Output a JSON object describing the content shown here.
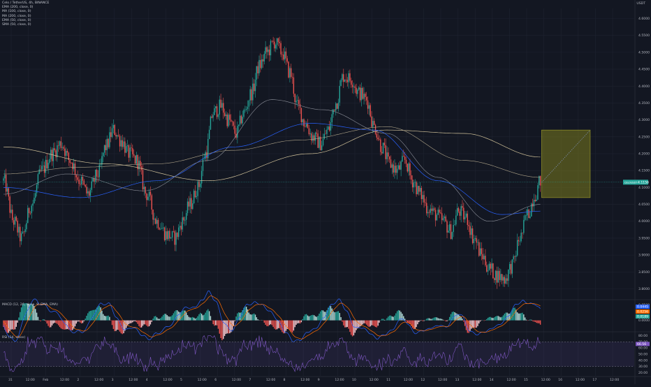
{
  "legend": {
    "title": "Celo / TetherUS, 4h, BINANCE",
    "indicators": [
      "EMA (200, close, 0)",
      "MA (100, close, 0)",
      "MA (200, close, 0)",
      "EMA (50, close, 0)",
      "SMA (50, close, 0)"
    ]
  },
  "price_axis_unit": "USDT",
  "macd_legend": "MACD (12, 26, close, 9, EMA, EMA)",
  "rsi_legend": "RSI (14, close)",
  "colors": {
    "background": "#131722",
    "grid": "#1f2330",
    "up": "#26a69a",
    "down": "#ef5350",
    "ema200": "#d1c29a",
    "ma100": "#2962ff",
    "ma200": "#b0a58a",
    "ema50": "#8c8f99",
    "macd_line": "#2962ff",
    "signal_line": "#ff6d00",
    "rsi_line": "#7e57c2",
    "rsi_band": "#7e57c2",
    "projection_box": "#7a7a1e",
    "price_label": "#26a69a"
  },
  "chart_data": [
    {
      "type": "candlestick",
      "name": "price",
      "x_ticks": [
        "31",
        "12:00",
        "Feb",
        "12:00",
        "2",
        "12:00",
        "3",
        "12:00",
        "4",
        "12:00",
        "5",
        "12:00",
        "6",
        "12:00",
        "7",
        "12:00",
        "8",
        "12:00",
        "9",
        "12:00",
        "10",
        "12:00",
        "11",
        "12:00",
        "12",
        "12:00",
        "13",
        "12:00",
        "14",
        "12:00",
        "15",
        "12:00",
        "16",
        "12:00",
        "17",
        "12:00"
      ],
      "y_ticks": [
        3.8,
        3.85,
        3.9,
        3.95,
        4.0,
        4.05,
        4.1,
        4.15,
        4.2,
        4.25,
        4.3,
        4.35,
        4.4,
        4.45,
        4.5,
        4.55,
        4.6
      ],
      "ylim": [
        3.77,
        4.63
      ],
      "last_price": "4.1156",
      "last_price_sub": "00:42:49",
      "anchors": [
        [
          0,
          4.12
        ],
        [
          8,
          4.0
        ],
        [
          14,
          3.95
        ],
        [
          22,
          4.05
        ],
        [
          30,
          4.15
        ],
        [
          38,
          4.2
        ],
        [
          45,
          4.23
        ],
        [
          52,
          4.18
        ],
        [
          60,
          4.12
        ],
        [
          66,
          4.08
        ],
        [
          74,
          4.14
        ],
        [
          80,
          4.22
        ],
        [
          86,
          4.27
        ],
        [
          92,
          4.24
        ],
        [
          98,
          4.2
        ],
        [
          104,
          4.18
        ],
        [
          112,
          4.08
        ],
        [
          120,
          4.0
        ],
        [
          128,
          3.96
        ],
        [
          134,
          3.95
        ],
        [
          140,
          4.0
        ],
        [
          146,
          4.05
        ],
        [
          152,
          4.1
        ],
        [
          158,
          4.2
        ],
        [
          164,
          4.32
        ],
        [
          170,
          4.34
        ],
        [
          176,
          4.3
        ],
        [
          182,
          4.26
        ],
        [
          188,
          4.32
        ],
        [
          194,
          4.38
        ],
        [
          200,
          4.46
        ],
        [
          206,
          4.5
        ],
        [
          212,
          4.53
        ],
        [
          218,
          4.5
        ],
        [
          224,
          4.44
        ],
        [
          230,
          4.34
        ],
        [
          236,
          4.29
        ],
        [
          242,
          4.25
        ],
        [
          248,
          4.23
        ],
        [
          254,
          4.27
        ],
        [
          260,
          4.35
        ],
        [
          266,
          4.43
        ],
        [
          272,
          4.42
        ],
        [
          278,
          4.38
        ],
        [
          284,
          4.36
        ],
        [
          290,
          4.28
        ],
        [
          296,
          4.22
        ],
        [
          302,
          4.17
        ],
        [
          308,
          4.15
        ],
        [
          314,
          4.18
        ],
        [
          320,
          4.12
        ],
        [
          326,
          4.08
        ],
        [
          332,
          4.04
        ],
        [
          338,
          4.02
        ],
        [
          344,
          4.0
        ],
        [
          350,
          3.97
        ],
        [
          356,
          4.03
        ],
        [
          362,
          4.01
        ],
        [
          368,
          3.95
        ],
        [
          374,
          3.9
        ],
        [
          380,
          3.86
        ],
        [
          386,
          3.84
        ],
        [
          392,
          3.83
        ],
        [
          398,
          3.87
        ],
        [
          404,
          3.95
        ],
        [
          410,
          4.02
        ],
        [
          416,
          4.08
        ],
        [
          420,
          4.12
        ]
      ],
      "n_candles": 421,
      "ema200_anchors": [
        [
          0,
          4.22
        ],
        [
          80,
          4.17
        ],
        [
          160,
          4.12
        ],
        [
          240,
          4.2
        ],
        [
          300,
          4.27
        ],
        [
          360,
          4.26
        ],
        [
          420,
          4.19
        ]
      ],
      "ma100_anchors": [
        [
          0,
          4.1
        ],
        [
          60,
          4.07
        ],
        [
          120,
          4.12
        ],
        [
          180,
          4.22
        ],
        [
          240,
          4.29
        ],
        [
          290,
          4.27
        ],
        [
          340,
          4.12
        ],
        [
          390,
          4.02
        ],
        [
          420,
          4.03
        ]
      ],
      "ma200_anchors": [
        [
          0,
          4.14
        ],
        [
          60,
          4.16
        ],
        [
          120,
          4.17
        ],
        [
          180,
          4.21
        ],
        [
          230,
          4.24
        ],
        [
          300,
          4.28
        ],
        [
          360,
          4.18
        ],
        [
          420,
          4.13
        ]
      ],
      "ema50_anchors": [
        [
          0,
          4.08
        ],
        [
          50,
          4.14
        ],
        [
          110,
          4.09
        ],
        [
          160,
          4.18
        ],
        [
          210,
          4.36
        ],
        [
          250,
          4.33
        ],
        [
          300,
          4.26
        ],
        [
          340,
          4.13
        ],
        [
          380,
          4.0
        ],
        [
          420,
          4.05
        ]
      ],
      "projection": {
        "start_index": 421,
        "end_index": 459,
        "top": 4.27,
        "bottom": 4.07,
        "entry": 4.115
      }
    },
    {
      "type": "macd",
      "name": "MACD",
      "y_ticks": [
        0.05,
        0.0
      ],
      "ylim": [
        -0.035,
        0.065
      ],
      "last_values": [
        "0.0445",
        "0.0256",
        "0.0189"
      ]
    },
    {
      "type": "line",
      "name": "RSI",
      "y_ticks": [
        80.0,
        70.0,
        60.0,
        50.0,
        40.0,
        30.0,
        20.0
      ],
      "ylim": [
        15,
        85
      ],
      "band": [
        30,
        70
      ],
      "last_value": "66.56"
    }
  ]
}
